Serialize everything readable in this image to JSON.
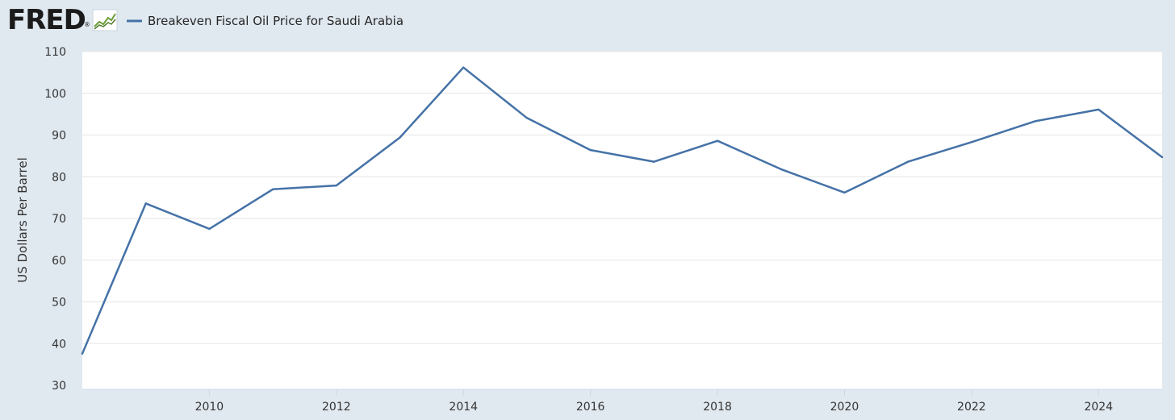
{
  "brand": {
    "logo_text": "FRED",
    "registered_mark": "®",
    "logo_icon": "fred-sparkline-icon"
  },
  "chart_data": {
    "type": "line",
    "title": "",
    "xlabel": "",
    "ylabel": "US Dollars Per Barrel",
    "ylim": [
      30,
      110
    ],
    "xlim": [
      2008,
      2025
    ],
    "grid": true,
    "legend_position": "top-left",
    "y_ticks": [
      30,
      40,
      50,
      60,
      70,
      80,
      90,
      100,
      110
    ],
    "x_ticks": [
      2010,
      2012,
      2014,
      2016,
      2018,
      2020,
      2022,
      2024
    ],
    "colors": {
      "series": "#4572a7",
      "grid": "#e6e6e6",
      "plot_background": "#ffffff",
      "page_background": "#e1e9f0"
    },
    "series": [
      {
        "name": "Breakeven Fiscal Oil Price for Saudi Arabia",
        "x": [
          2008,
          2009,
          2010,
          2011,
          2012,
          2013,
          2014,
          2015,
          2016,
          2017,
          2018,
          2019,
          2020,
          2021,
          2022,
          2023,
          2024,
          2025
        ],
        "values": [
          37.6,
          73.6,
          67.5,
          77.0,
          77.9,
          89.4,
          106.2,
          94.1,
          86.4,
          83.6,
          88.6,
          81.8,
          76.2,
          83.6,
          88.3,
          93.3,
          96.1,
          84.7
        ]
      }
    ]
  }
}
